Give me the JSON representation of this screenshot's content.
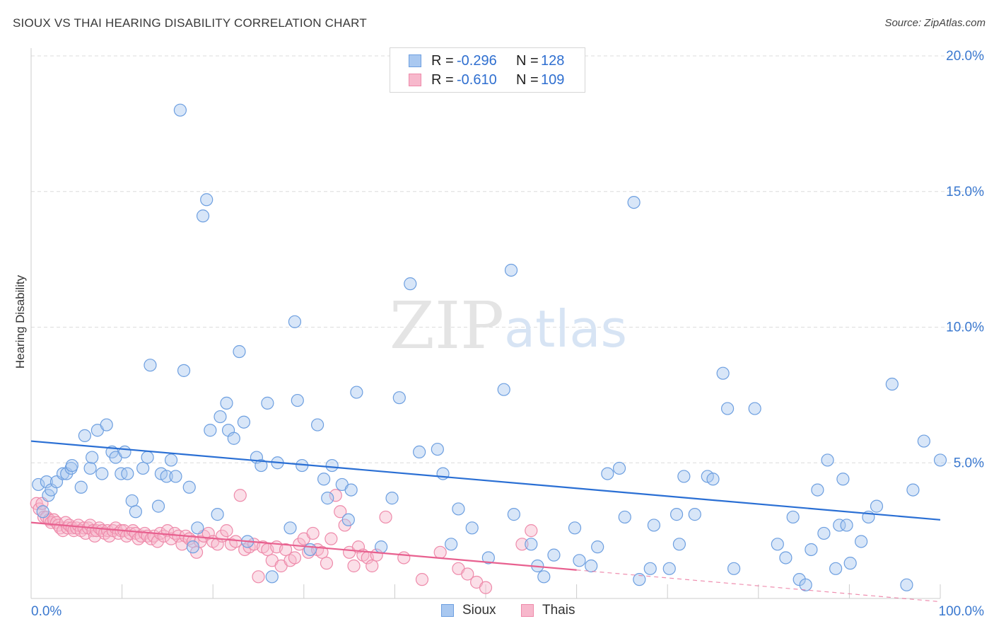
{
  "title": "SIOUX VS THAI HEARING DISABILITY CORRELATION CHART",
  "source": "Source: ZipAtlas.com",
  "watermark": {
    "zip": "ZIP",
    "atlas": "atlas"
  },
  "colors": {
    "sioux_fill": "#a9c8f0",
    "sioux_stroke": "#6d9fe0",
    "sioux_line": "#2a6fd4",
    "thai_fill": "#f7b8cc",
    "thai_stroke": "#ee8aaa",
    "thai_line": "#e8608f",
    "tick_text": "#3a78cf",
    "grid": "#dcdcdc"
  },
  "legend": {
    "rows": [
      {
        "r_label": "R =",
        "r_value": "-0.296",
        "n_label": "N =",
        "n_value": "128"
      },
      {
        "r_label": "R =",
        "r_value": "-0.610",
        "n_label": "N =",
        "n_value": "109"
      }
    ],
    "bottom": [
      "Sioux",
      "Thais"
    ]
  },
  "chart_data": {
    "type": "scatter",
    "xlabel": "",
    "ylabel": "Hearing Disability",
    "xlim": [
      0,
      100
    ],
    "ylim": [
      0,
      20.5
    ],
    "x_tick_labels": [
      {
        "value": 0,
        "label": "0.0%"
      },
      {
        "value": 100,
        "label": "100.0%"
      }
    ],
    "y_tick_labels": [
      {
        "value": 5,
        "label": "5.0%"
      },
      {
        "value": 10,
        "label": "10.0%"
      },
      {
        "value": 15,
        "label": "15.0%"
      },
      {
        "value": 20,
        "label": "20.0%"
      }
    ],
    "grid": "horizontal dashed",
    "series": [
      {
        "name": "Sioux",
        "trend": {
          "x": [
            0,
            100
          ],
          "y": [
            5.8,
            2.9
          ]
        },
        "points": [
          [
            0.8,
            4.2
          ],
          [
            1.3,
            3.2
          ],
          [
            1.7,
            4.3
          ],
          [
            1.9,
            3.8
          ],
          [
            2.2,
            4.0
          ],
          [
            2.8,
            4.3
          ],
          [
            3.5,
            4.6
          ],
          [
            3.9,
            4.6
          ],
          [
            4.4,
            4.8
          ],
          [
            4.5,
            4.9
          ],
          [
            5.5,
            4.1
          ],
          [
            5.9,
            6.0
          ],
          [
            6.5,
            4.8
          ],
          [
            6.7,
            5.2
          ],
          [
            7.3,
            6.2
          ],
          [
            7.8,
            4.6
          ],
          [
            8.3,
            6.4
          ],
          [
            8.9,
            5.4
          ],
          [
            9.3,
            5.2
          ],
          [
            9.9,
            4.6
          ],
          [
            10.3,
            5.4
          ],
          [
            10.6,
            4.6
          ],
          [
            11.1,
            3.6
          ],
          [
            11.5,
            3.2
          ],
          [
            12.3,
            4.8
          ],
          [
            12.8,
            5.2
          ],
          [
            13.1,
            8.6
          ],
          [
            14.0,
            3.4
          ],
          [
            14.3,
            4.6
          ],
          [
            14.9,
            4.5
          ],
          [
            15.4,
            5.1
          ],
          [
            15.9,
            4.5
          ],
          [
            16.4,
            18.0
          ],
          [
            16.8,
            8.4
          ],
          [
            17.4,
            4.1
          ],
          [
            17.8,
            1.9
          ],
          [
            18.3,
            2.6
          ],
          [
            18.9,
            14.1
          ],
          [
            19.3,
            14.7
          ],
          [
            19.7,
            6.2
          ],
          [
            20.5,
            3.1
          ],
          [
            20.8,
            6.7
          ],
          [
            21.5,
            7.2
          ],
          [
            21.7,
            6.2
          ],
          [
            22.3,
            5.9
          ],
          [
            22.9,
            9.1
          ],
          [
            23.4,
            6.5
          ],
          [
            23.8,
            2.1
          ],
          [
            24.8,
            5.2
          ],
          [
            25.3,
            4.9
          ],
          [
            26.0,
            7.2
          ],
          [
            26.5,
            0.8
          ],
          [
            27.1,
            5.0
          ],
          [
            28.5,
            2.6
          ],
          [
            29.0,
            10.2
          ],
          [
            29.3,
            7.3
          ],
          [
            29.8,
            4.9
          ],
          [
            30.7,
            1.8
          ],
          [
            31.5,
            6.4
          ],
          [
            32.2,
            4.4
          ],
          [
            32.6,
            3.7
          ],
          [
            33.1,
            4.9
          ],
          [
            34.2,
            4.2
          ],
          [
            34.9,
            2.9
          ],
          [
            35.2,
            4.0
          ],
          [
            35.8,
            7.6
          ],
          [
            38.5,
            1.9
          ],
          [
            39.7,
            3.7
          ],
          [
            40.5,
            7.4
          ],
          [
            41.7,
            11.6
          ],
          [
            42.7,
            5.4
          ],
          [
            44.7,
            5.5
          ],
          [
            45.3,
            4.6
          ],
          [
            46.2,
            2.0
          ],
          [
            47.0,
            3.3
          ],
          [
            48.5,
            2.6
          ],
          [
            50.3,
            1.5
          ],
          [
            52.0,
            7.7
          ],
          [
            52.8,
            12.1
          ],
          [
            53.1,
            3.1
          ],
          [
            55.0,
            2.0
          ],
          [
            55.7,
            1.2
          ],
          [
            56.4,
            0.8
          ],
          [
            57.5,
            1.6
          ],
          [
            59.8,
            2.6
          ],
          [
            60.3,
            1.4
          ],
          [
            61.6,
            1.2
          ],
          [
            62.3,
            1.9
          ],
          [
            63.4,
            4.6
          ],
          [
            64.7,
            4.8
          ],
          [
            65.3,
            3.0
          ],
          [
            66.3,
            14.6
          ],
          [
            66.9,
            0.7
          ],
          [
            68.1,
            1.1
          ],
          [
            68.5,
            2.7
          ],
          [
            70.2,
            1.1
          ],
          [
            71.0,
            3.1
          ],
          [
            71.3,
            2.0
          ],
          [
            71.8,
            4.5
          ],
          [
            73.0,
            3.1
          ],
          [
            74.4,
            4.5
          ],
          [
            75.0,
            4.4
          ],
          [
            76.1,
            8.3
          ],
          [
            76.6,
            7.0
          ],
          [
            77.3,
            1.1
          ],
          [
            79.6,
            7.0
          ],
          [
            82.1,
            2.0
          ],
          [
            83.0,
            1.5
          ],
          [
            83.8,
            3.0
          ],
          [
            84.5,
            0.7
          ],
          [
            85.2,
            0.5
          ],
          [
            85.8,
            1.8
          ],
          [
            86.5,
            4.0
          ],
          [
            87.2,
            2.4
          ],
          [
            87.6,
            5.1
          ],
          [
            88.5,
            1.1
          ],
          [
            88.9,
            2.7
          ],
          [
            89.3,
            4.4
          ],
          [
            89.7,
            2.7
          ],
          [
            90.1,
            1.3
          ],
          [
            91.3,
            2.1
          ],
          [
            92.1,
            3.0
          ],
          [
            93.0,
            3.4
          ],
          [
            94.7,
            7.9
          ],
          [
            96.3,
            0.5
          ],
          [
            97.0,
            4.0
          ],
          [
            98.2,
            5.8
          ],
          [
            100.0,
            5.1
          ]
        ]
      },
      {
        "name": "Thais",
        "trend": {
          "x": [
            0,
            60
          ],
          "y": [
            2.8,
            1.05
          ]
        },
        "dashed_extension": {
          "x": [
            60,
            100
          ],
          "y": [
            1.05,
            -0.12
          ]
        },
        "points": [
          [
            0.6,
            3.5
          ],
          [
            0.9,
            3.3
          ],
          [
            1.2,
            3.5
          ],
          [
            1.4,
            3.0
          ],
          [
            1.7,
            3.0
          ],
          [
            2.0,
            2.9
          ],
          [
            2.2,
            2.8
          ],
          [
            2.5,
            2.9
          ],
          [
            2.8,
            2.8
          ],
          [
            3.0,
            2.7
          ],
          [
            3.2,
            2.6
          ],
          [
            3.5,
            2.5
          ],
          [
            3.8,
            2.8
          ],
          [
            4.0,
            2.6
          ],
          [
            4.2,
            2.7
          ],
          [
            4.5,
            2.6
          ],
          [
            4.7,
            2.5
          ],
          [
            5.0,
            2.6
          ],
          [
            5.2,
            2.7
          ],
          [
            5.5,
            2.5
          ],
          [
            5.8,
            2.6
          ],
          [
            6.0,
            2.4
          ],
          [
            6.3,
            2.6
          ],
          [
            6.5,
            2.7
          ],
          [
            6.8,
            2.5
          ],
          [
            7.0,
            2.3
          ],
          [
            7.2,
            2.5
          ],
          [
            7.5,
            2.6
          ],
          [
            7.8,
            2.5
          ],
          [
            8.1,
            2.4
          ],
          [
            8.4,
            2.5
          ],
          [
            8.6,
            2.3
          ],
          [
            9.0,
            2.5
          ],
          [
            9.3,
            2.6
          ],
          [
            9.6,
            2.4
          ],
          [
            9.9,
            2.5
          ],
          [
            10.2,
            2.5
          ],
          [
            10.5,
            2.3
          ],
          [
            10.9,
            2.4
          ],
          [
            11.2,
            2.5
          ],
          [
            11.5,
            2.4
          ],
          [
            11.8,
            2.2
          ],
          [
            12.1,
            2.3
          ],
          [
            12.5,
            2.4
          ],
          [
            12.8,
            2.3
          ],
          [
            13.2,
            2.2
          ],
          [
            13.5,
            2.3
          ],
          [
            13.9,
            2.1
          ],
          [
            14.2,
            2.4
          ],
          [
            14.6,
            2.3
          ],
          [
            15.0,
            2.5
          ],
          [
            15.4,
            2.2
          ],
          [
            15.8,
            2.4
          ],
          [
            16.2,
            2.3
          ],
          [
            16.6,
            2.0
          ],
          [
            17.0,
            2.3
          ],
          [
            17.4,
            2.2
          ],
          [
            17.8,
            2.1
          ],
          [
            18.2,
            1.7
          ],
          [
            18.6,
            2.1
          ],
          [
            19.0,
            2.3
          ],
          [
            19.5,
            2.4
          ],
          [
            20.0,
            2.1
          ],
          [
            20.5,
            2.0
          ],
          [
            21.0,
            2.3
          ],
          [
            21.5,
            2.5
          ],
          [
            22.0,
            2.0
          ],
          [
            22.5,
            2.1
          ],
          [
            23.0,
            3.8
          ],
          [
            23.5,
            1.8
          ],
          [
            24.0,
            1.9
          ],
          [
            24.5,
            2.0
          ],
          [
            25.0,
            0.8
          ],
          [
            25.5,
            1.9
          ],
          [
            26.0,
            1.8
          ],
          [
            26.5,
            1.4
          ],
          [
            27.0,
            1.9
          ],
          [
            27.5,
            1.2
          ],
          [
            28.0,
            1.8
          ],
          [
            28.5,
            1.4
          ],
          [
            29.0,
            1.5
          ],
          [
            29.5,
            2.0
          ],
          [
            30.0,
            2.2
          ],
          [
            30.5,
            1.7
          ],
          [
            31.0,
            2.4
          ],
          [
            31.5,
            1.8
          ],
          [
            32.0,
            1.7
          ],
          [
            32.5,
            1.3
          ],
          [
            33.0,
            2.2
          ],
          [
            33.5,
            3.8
          ],
          [
            34.0,
            3.2
          ],
          [
            34.5,
            2.7
          ],
          [
            35.0,
            1.7
          ],
          [
            35.5,
            1.2
          ],
          [
            36.0,
            1.9
          ],
          [
            36.5,
            1.6
          ],
          [
            37.0,
            1.5
          ],
          [
            37.5,
            1.2
          ],
          [
            38.0,
            1.6
          ],
          [
            39.0,
            3.0
          ],
          [
            41.0,
            1.5
          ],
          [
            43.0,
            0.7
          ],
          [
            45.0,
            1.7
          ],
          [
            47.0,
            1.1
          ],
          [
            48.0,
            0.9
          ],
          [
            49.0,
            0.6
          ],
          [
            50.0,
            0.4
          ],
          [
            54.0,
            2.0
          ],
          [
            55.0,
            2.5
          ]
        ]
      }
    ]
  }
}
